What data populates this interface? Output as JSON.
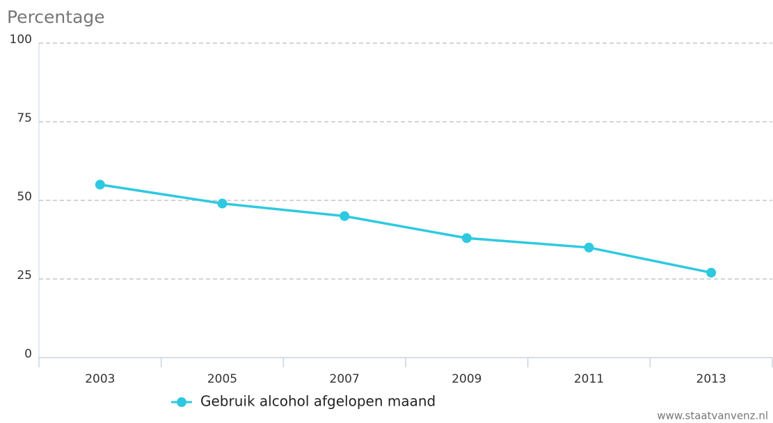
{
  "chart_data": {
    "type": "line",
    "title": "Percentage",
    "source": "www.staatvanvenz.nl",
    "categories": [
      "2003",
      "2005",
      "2007",
      "2009",
      "2011",
      "2013"
    ],
    "series": [
      {
        "name": "Gebruik alcohol afgelopen maand",
        "color": "#2ec9e0",
        "values": [
          55,
          49,
          45,
          38,
          35,
          27
        ]
      }
    ],
    "ylim": [
      0,
      100
    ],
    "yticks": [
      0,
      25,
      50,
      75,
      100
    ],
    "grid": true,
    "legend": "bottom"
  }
}
